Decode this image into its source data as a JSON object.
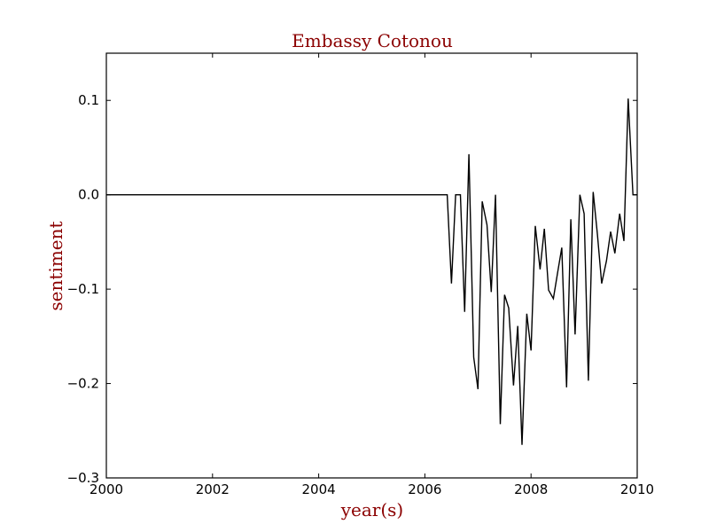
{
  "chart_data": {
    "type": "line",
    "title": "Embassy Cotonou",
    "xlabel": "year(s)",
    "ylabel": "sentiment",
    "xlim": [
      2000,
      2010
    ],
    "ylim": [
      -0.3,
      0.15
    ],
    "xticks": [
      2000,
      2002,
      2004,
      2006,
      2008,
      2010
    ],
    "xtick_labels": [
      "2000",
      "2002",
      "2004",
      "2006",
      "2008",
      "2010"
    ],
    "yticks": [
      -0.3,
      -0.2,
      -0.1,
      0.0,
      0.1
    ],
    "ytick_labels": [
      "−0.3",
      "−0.2",
      "−0.1",
      "0.0",
      "0.1"
    ],
    "grid": false,
    "series": [
      {
        "color": "#000000",
        "x": [
          2000.0,
          2006.42,
          2006.5,
          2006.58,
          2006.67,
          2006.75,
          2006.83,
          2006.92,
          2007.0,
          2007.08,
          2007.17,
          2007.25,
          2007.33,
          2007.42,
          2007.5,
          2007.58,
          2007.67,
          2007.75,
          2007.83,
          2007.92,
          2008.0,
          2008.08,
          2008.17,
          2008.25,
          2008.33,
          2008.42,
          2008.5,
          2008.58,
          2008.67,
          2008.75,
          2008.83,
          2008.92,
          2009.0,
          2009.08,
          2009.17,
          2009.25,
          2009.33,
          2009.42,
          2009.5,
          2009.58,
          2009.67,
          2009.75,
          2009.83,
          2009.92,
          2010.0
        ],
        "y": [
          0.0,
          0.0,
          -0.094,
          0.0,
          0.0,
          -0.124,
          0.043,
          -0.172,
          -0.206,
          -0.007,
          -0.032,
          -0.103,
          0.0,
          -0.243,
          -0.106,
          -0.12,
          -0.202,
          -0.139,
          -0.265,
          -0.126,
          -0.165,
          -0.033,
          -0.079,
          -0.036,
          -0.101,
          -0.11,
          -0.083,
          -0.056,
          -0.204,
          -0.026,
          -0.148,
          0.0,
          -0.02,
          -0.197,
          0.003,
          -0.042,
          -0.094,
          -0.07,
          -0.039,
          -0.062,
          -0.02,
          -0.049,
          0.102,
          0.0,
          0.0
        ]
      }
    ]
  }
}
